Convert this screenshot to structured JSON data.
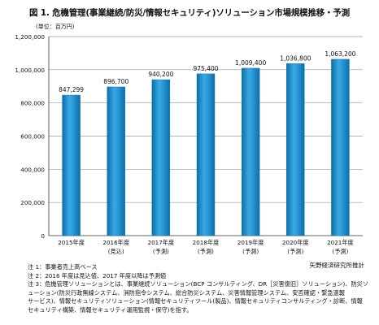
{
  "header": {
    "title": "図 1. 危機管理(事業継続/防災/情報セキュリティ)ソリューション市場規模推移・予測",
    "unit": "(単位：百万円)"
  },
  "chart_data": {
    "type": "bar",
    "title": "図 1. 危機管理(事業継続/防災/情報セキュリティ)ソリューション市場規模推移・予測",
    "ylabel": "",
    "xlabel": "",
    "ylim": [
      0,
      1200000
    ],
    "yticks": [
      "0",
      "200,000",
      "400,000",
      "600,000",
      "800,000",
      "1,000,000",
      "1,200,000"
    ],
    "grid": true,
    "categories": [
      {
        "year": "2015年度",
        "sub": ""
      },
      {
        "year": "2016年度",
        "sub": "(見込)"
      },
      {
        "year": "2017年度",
        "sub": "(予測)"
      },
      {
        "year": "2018年度",
        "sub": "(予測)"
      },
      {
        "year": "2019年度",
        "sub": "(予測)"
      },
      {
        "year": "2020年度",
        "sub": "(予測)"
      },
      {
        "year": "2021年度",
        "sub": "(予測)"
      }
    ],
    "values": [
      847299,
      896700,
      940200,
      975400,
      1009400,
      1036800,
      1063200
    ],
    "value_labels": [
      "847,299",
      "896,700",
      "940,200",
      "975,400",
      "1,009,400",
      "1,036,800",
      "1,063,200"
    ],
    "bar_color": "#2196d3",
    "bar_dark": "#0b6ea8"
  },
  "notes": [
    "注 1：事業者売上高ベース",
    "注 2：2016 年度は見込値、2017 年度以降は予測値",
    "注 3：危機管理ソリューションとは、事業継続ソリューション(BCP コンサルティング、DR［災害復旧］ソリューション)、防災ソリ",
    "ューション(防災行政無線システム、消防指令システム、総合防災システム、災害情報管理システム、安否確認・緊急速報",
    "サービス)、情報セキュリティソリューション(情報セキュリティツール(製品)、情報セキュリティコンサルティング・診断、情報",
    "セキュリティ構築、情報セキュリティ運用監視・保守)を指す。"
  ],
  "credit": "矢野経済研究所推計"
}
